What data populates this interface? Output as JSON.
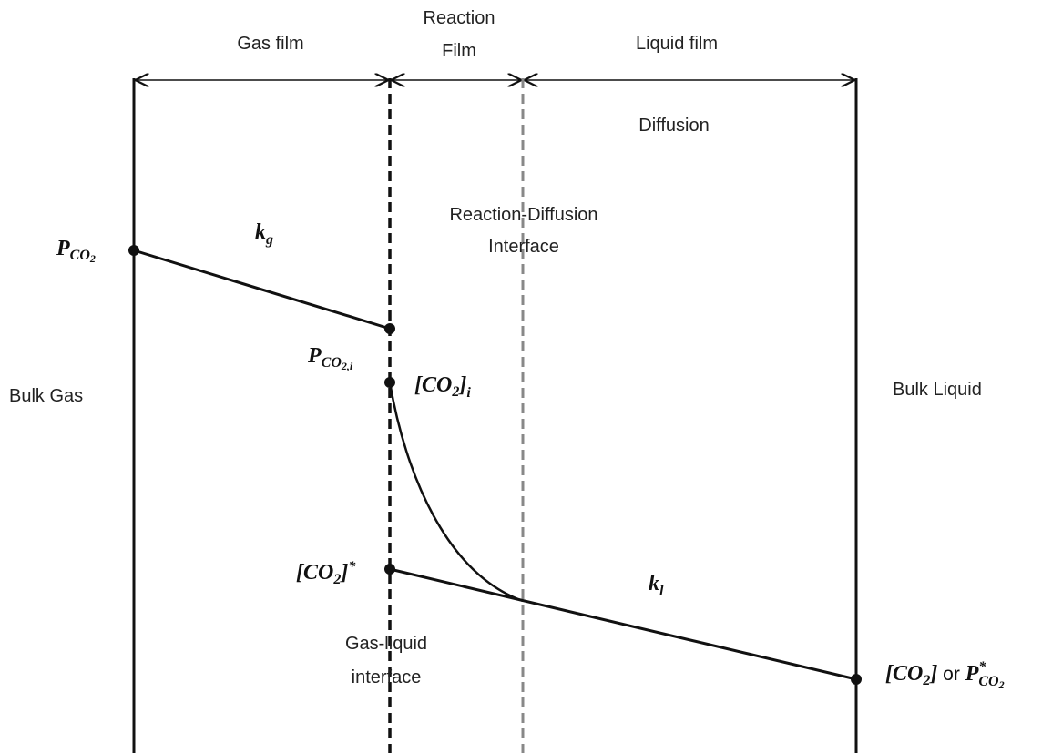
{
  "labels": {
    "gas_film": "Gas film",
    "reaction_film": [
      "Reaction",
      "Film"
    ],
    "liquid_film": "Liquid film",
    "diffusion": "Diffusion",
    "reaction_diffusion_interface": [
      "Reaction-Diffusion",
      "Interface"
    ],
    "bulk_gas": "Bulk Gas",
    "bulk_liquid": "Bulk Liquid",
    "gas_liquid_interface": [
      "Gas-liquid",
      "interface"
    ]
  },
  "symbols": {
    "kg": {
      "base": "k",
      "sub": "g"
    },
    "kl": {
      "base": "k",
      "sub": "l"
    },
    "p_co2": {
      "base": "P",
      "sub": "CO",
      "subsub": "2"
    },
    "p_co2_i": {
      "base": "P",
      "sub": "CO",
      "subsub": "2,i"
    },
    "co2_i": {
      "base": "[CO",
      "sub": "2",
      "close": "]",
      "sub2": "i"
    },
    "co2_star": {
      "base": "[CO",
      "sub": "2",
      "close": "]",
      "sup": "*"
    },
    "co2_bulk": {
      "base": "[CO",
      "sub": "2",
      "close": "]",
      "or": " or ",
      "p": "P",
      "sup": "*",
      "psub": "CO",
      "psubsub": "2"
    }
  }
}
